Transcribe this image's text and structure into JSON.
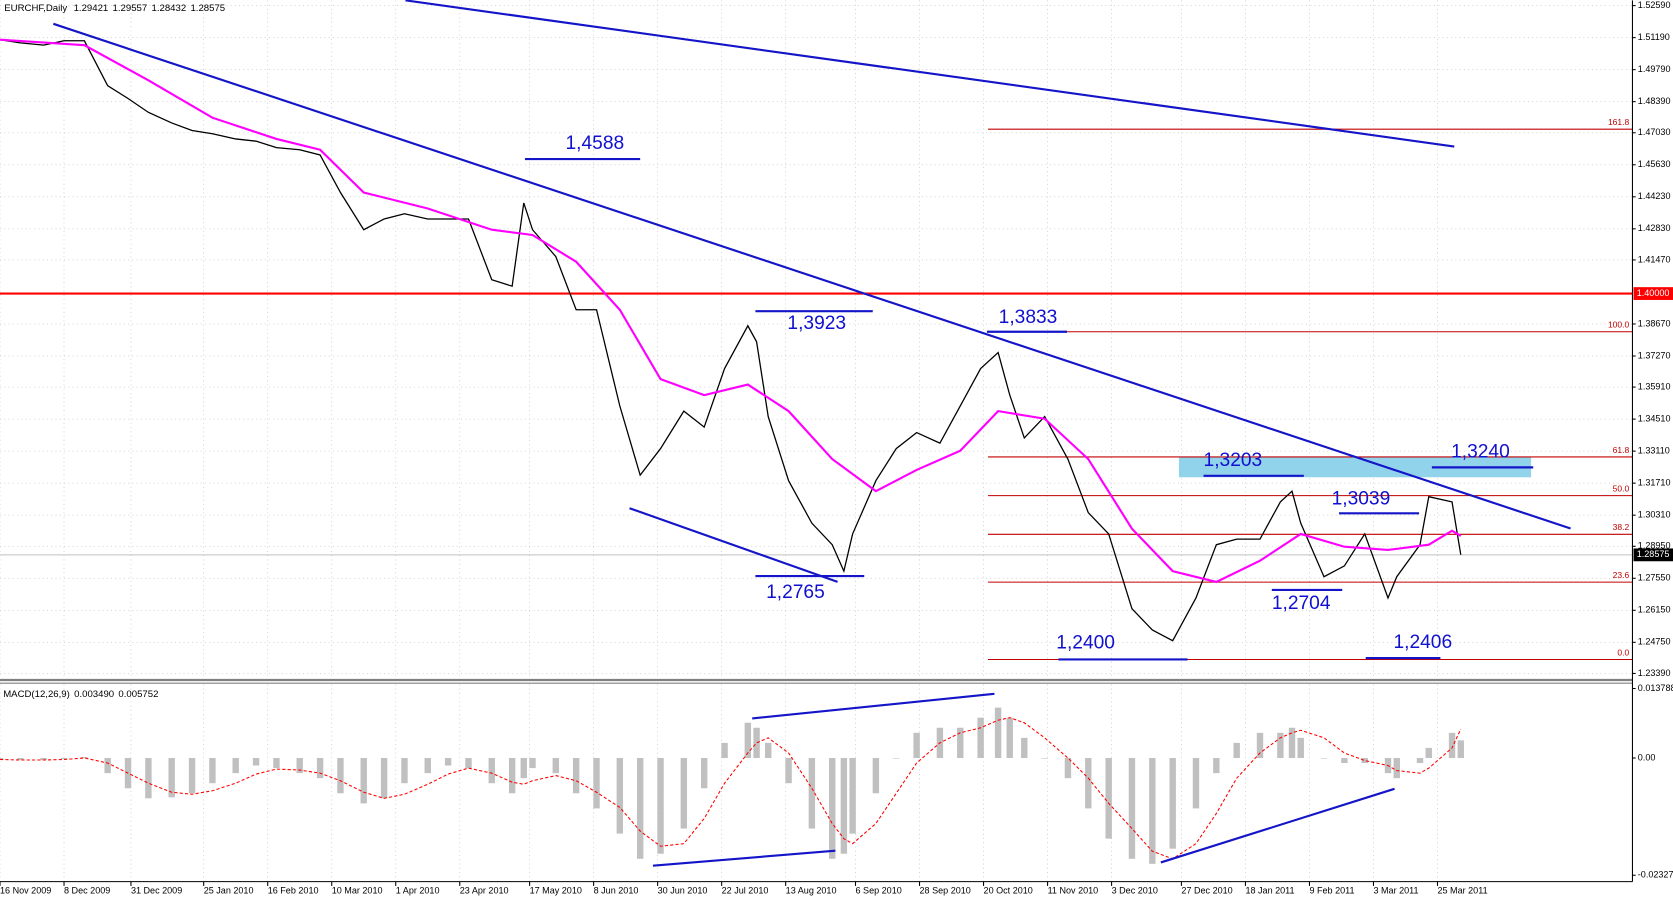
{
  "chart_data": [
    {
      "type": "line",
      "title": "EURCHF,Daily",
      "ohlc": [
        1.29421,
        1.29557,
        1.28432,
        1.28575
      ],
      "x": [
        "2009-11-16",
        "2009-11-23",
        "2009-12-01",
        "2009-12-08",
        "2009-12-15",
        "2009-12-23",
        "2009-12-30",
        "2010-01-06",
        "2010-01-14",
        "2010-01-21",
        "2010-01-28",
        "2010-02-05",
        "2010-02-12",
        "2010-02-19",
        "2010-02-27",
        "2010-03-06",
        "2010-03-13",
        "2010-03-21",
        "2010-03-28",
        "2010-04-04",
        "2010-04-12",
        "2010-04-19",
        "2010-04-26",
        "2010-05-04",
        "2010-05-11",
        "2010-05-15",
        "2010-05-18",
        "2010-05-26",
        "2010-06-02",
        "2010-06-09",
        "2010-06-17",
        "2010-06-24",
        "2010-07-01",
        "2010-07-09",
        "2010-07-16",
        "2010-07-23",
        "2010-07-31",
        "2010-08-03",
        "2010-08-07",
        "2010-08-14",
        "2010-08-22",
        "2010-08-29",
        "2010-09-02",
        "2010-09-05",
        "2010-09-13",
        "2010-09-20",
        "2010-09-27",
        "2010-10-05",
        "2010-10-12",
        "2010-10-19",
        "2010-10-25",
        "2010-10-29",
        "2010-11-03",
        "2010-11-10",
        "2010-11-18",
        "2010-11-25",
        "2010-12-02",
        "2010-12-10",
        "2010-12-17",
        "2010-12-24",
        "2011-01-01",
        "2011-01-08",
        "2011-01-15",
        "2011-01-23",
        "2011-01-30",
        "2011-02-03",
        "2011-02-06",
        "2011-02-14",
        "2011-02-21",
        "2011-02-28",
        "2011-03-08",
        "2011-03-11",
        "2011-03-19",
        "2011-03-22",
        "2011-03-30",
        "2011-04-02"
      ],
      "series": [
        {
          "color": "#000000",
          "values": [
            1.511,
            1.5096,
            1.5086,
            1.5105,
            1.5105,
            1.4909,
            1.4853,
            1.4792,
            1.4746,
            1.4713,
            1.4699,
            1.4676,
            1.4666,
            1.4638,
            1.4629,
            1.4606,
            1.4442,
            1.4279,
            1.4326,
            1.4349,
            1.4326,
            1.4326,
            1.4326,
            1.406,
            1.4032,
            1.4396,
            1.4279,
            1.4162,
            1.3929,
            1.3929,
            1.3509,
            1.3206,
            1.3322,
            1.3486,
            1.3416,
            1.3672,
            1.3859,
            1.3789,
            1.3462,
            1.3182,
            1.2996,
            1.2902,
            1.2786,
            1.2949,
            1.3182,
            1.3322,
            1.3392,
            1.3346,
            1.3509,
            1.3672,
            1.3742,
            1.3556,
            1.3369,
            1.3462,
            1.3276,
            1.3042,
            1.2949,
            1.2622,
            1.2529,
            1.2482,
            1.2669,
            1.2902,
            1.2926,
            1.2926,
            1.3089,
            1.3136,
            1.2996,
            1.2762,
            1.2809,
            1.2949,
            1.2669,
            1.2762,
            1.2902,
            1.3112,
            1.3089,
            1.2858
          ]
        },
        {
          "color": "#ff00ff",
          "x": [
            "2009-11-16",
            "2009-12-15",
            "2010-01-06",
            "2010-01-28",
            "2010-02-19",
            "2010-03-06",
            "2010-03-21",
            "2010-04-12",
            "2010-05-04",
            "2010-05-18",
            "2010-06-02",
            "2010-06-17",
            "2010-07-01",
            "2010-07-16",
            "2010-07-31",
            "2010-08-14",
            "2010-08-29",
            "2010-09-13",
            "2010-09-27",
            "2010-10-12",
            "2010-10-25",
            "2010-11-10",
            "2010-11-25",
            "2010-12-10",
            "2010-12-24",
            "2011-01-08",
            "2011-01-23",
            "2011-02-06",
            "2011-02-21",
            "2011-03-08",
            "2011-03-22",
            "2011-03-30",
            "2011-04-02"
          ],
          "values": [
            1.511,
            1.5086,
            1.4932,
            1.4769,
            1.4676,
            1.4629,
            1.4442,
            1.4372,
            1.4279,
            1.4256,
            1.4139,
            1.3929,
            1.3626,
            1.3556,
            1.3602,
            1.3486,
            1.3276,
            1.3136,
            1.3229,
            1.3313,
            1.3486,
            1.3453,
            1.3276,
            1.2972,
            1.2786,
            1.2739,
            1.2832,
            1.2949,
            1.2893,
            1.2879,
            1.2902,
            1.2963,
            1.294
          ]
        }
      ],
      "xlim": [
        "2009-11-16",
        "2011-05-31"
      ],
      "xticks": [
        {
          "value": "2009-11-16",
          "label": "16 Nov 2009"
        },
        {
          "value": "2009-12-08",
          "label": "8 Dec 2009"
        },
        {
          "value": "2009-12-31",
          "label": "31 Dec 2009"
        },
        {
          "value": "2010-01-25",
          "label": "25 Jan 2010"
        },
        {
          "value": "2010-02-16",
          "label": "16 Feb 2010"
        },
        {
          "value": "2010-03-10",
          "label": "10 Mar 2010"
        },
        {
          "value": "2010-04-01",
          "label": "1 Apr 2010"
        },
        {
          "value": "2010-04-23",
          "label": "23 Apr 2010"
        },
        {
          "value": "2010-05-17",
          "label": "17 May 2010"
        },
        {
          "value": "2010-06-08",
          "label": "8 Jun 2010"
        },
        {
          "value": "2010-06-30",
          "label": "30 Jun 2010"
        },
        {
          "value": "2010-07-22",
          "label": "22 Jul 2010"
        },
        {
          "value": "2010-08-13",
          "label": "13 Aug 2010"
        },
        {
          "value": "2010-09-06",
          "label": "6 Sep 2010"
        },
        {
          "value": "2010-09-28",
          "label": "28 Sep 2010"
        },
        {
          "value": "2010-10-20",
          "label": "20 Oct 2010"
        },
        {
          "value": "2010-11-11",
          "label": "11 Nov 2010"
        },
        {
          "value": "2010-12-03",
          "label": "3 Dec 2010"
        },
        {
          "value": "2010-12-27",
          "label": "27 Dec 2010"
        },
        {
          "value": "2011-01-18",
          "label": "18 Jan 2011"
        },
        {
          "value": "2011-02-09",
          "label": "9 Feb 2011"
        },
        {
          "value": "2011-03-03",
          "label": "3 Mar 2011"
        },
        {
          "value": "2011-03-25",
          "label": "25 Mar 2011"
        }
      ],
      "ylim": [
        1.2315,
        1.5282
      ],
      "yticks": [
        {
          "value": 1.5259,
          "label": "1.52590"
        },
        {
          "value": 1.5119,
          "label": "1.51190"
        },
        {
          "value": 1.4979,
          "label": "1.49790"
        },
        {
          "value": 1.4839,
          "label": "1.48390"
        },
        {
          "value": 1.4703,
          "label": "1.47030"
        },
        {
          "value": 1.4563,
          "label": "1.45630"
        },
        {
          "value": 1.4423,
          "label": "1.44230"
        },
        {
          "value": 1.4283,
          "label": "1.42830"
        },
        {
          "value": 1.4147,
          "label": "1.41470"
        },
        {
          "value": 1.3867,
          "label": "1.38670"
        },
        {
          "value": 1.3727,
          "label": "1.37270"
        },
        {
          "value": 1.3591,
          "label": "1.35910"
        },
        {
          "value": 1.3451,
          "label": "1.34510"
        },
        {
          "value": 1.3311,
          "label": "1.33110"
        },
        {
          "value": 1.3171,
          "label": "1.31710"
        },
        {
          "value": 1.3031,
          "label": "1.30310"
        },
        {
          "value": 1.2895,
          "label": "1.28950"
        },
        {
          "value": 1.2755,
          "label": "1.27550"
        },
        {
          "value": 1.2615,
          "label": "1.26150"
        },
        {
          "value": 1.2475,
          "label": "1.24750"
        },
        {
          "value": 1.2339,
          "label": "1.23390"
        }
      ],
      "grid": true,
      "levels": [
        {
          "value": 1.4,
          "label": "1.40000",
          "color": "#ff0000"
        }
      ],
      "annotations": [
        {
          "value": 1.4588,
          "label": "1,4588"
        },
        {
          "value": 1.3923,
          "label": "1,3923"
        },
        {
          "value": 1.3833,
          "label": "1,3833"
        },
        {
          "value": 1.2765,
          "label": "1,2765"
        },
        {
          "value": 1.24,
          "label": "1,2400"
        },
        {
          "value": 1.3203,
          "label": "1,3203"
        },
        {
          "value": 1.324,
          "label": "1,3240"
        },
        {
          "value": 1.3039,
          "label": "1,3039"
        },
        {
          "value": 1.2704,
          "label": "1,2704"
        },
        {
          "value": 1.2406,
          "label": "1,2406"
        }
      ],
      "fibonacci": {
        "color": "#c00000",
        "levels": [
          {
            "value": 161.8,
            "label": "161.8"
          },
          {
            "value": 100,
            "label": "100.0"
          },
          {
            "value": 61.8,
            "label": "61.8"
          },
          {
            "value": 50,
            "label": "50.0"
          },
          {
            "value": 38.2,
            "label": "38.2"
          },
          {
            "value": 23.6,
            "label": "23.6"
          },
          {
            "value": 0,
            "label": "0.0"
          }
        ]
      }
    },
    {
      "type": "bar",
      "title": "MACD(12,26,9)",
      "readings": [
        {
          "value": 0.00349,
          "label": "0.003490"
        },
        0.005752
      ],
      "series": [
        {
          "color": "#c0c0c0",
          "values": [
            -0.0004,
            -0.0004,
            -0.0004,
            -0.0002,
            0.0002,
            -0.003,
            -0.006,
            -0.008,
            -0.0078,
            -0.007,
            -0.005,
            -0.003,
            -0.0015,
            -0.002,
            -0.003,
            -0.004,
            -0.007,
            -0.009,
            -0.008,
            -0.005,
            -0.003,
            -0.0015,
            -0.002,
            -0.005,
            -0.007,
            -0.004,
            -0.002,
            -0.003,
            -0.007,
            -0.01,
            -0.015,
            -0.02,
            -0.019,
            -0.014,
            -0.006,
            0.003,
            0.007,
            0.006,
            0.003,
            -0.005,
            -0.014,
            -0.02,
            -0.019,
            -0.015,
            -0.007,
            0.0,
            0.005,
            0.006,
            0.006,
            0.008,
            0.01,
            0.008,
            0.004,
            0.0,
            -0.004,
            -0.01,
            -0.016,
            -0.02,
            -0.021,
            -0.018,
            -0.01,
            -0.003,
            0.003,
            0.005,
            0.005,
            0.006,
            0.004,
            0.0,
            -0.001,
            -0.001,
            -0.003,
            -0.004,
            -0.001,
            0.002,
            0.005,
            0.0035
          ]
        },
        {
          "color": "#ff0000",
          "dash": true,
          "values": [
            -0.0003,
            -0.0004,
            -0.0004,
            -0.0003,
            0.0,
            -0.001,
            -0.003,
            -0.005,
            -0.0068,
            -0.0072,
            -0.0065,
            -0.005,
            -0.0032,
            -0.0022,
            -0.0024,
            -0.003,
            -0.0045,
            -0.0068,
            -0.008,
            -0.0072,
            -0.0052,
            -0.0032,
            -0.002,
            -0.003,
            -0.0048,
            -0.0052,
            -0.0045,
            -0.0035,
            -0.0045,
            -0.0068,
            -0.0098,
            -0.0145,
            -0.0175,
            -0.017,
            -0.012,
            -0.005,
            0.001,
            0.003,
            0.004,
            0.001,
            -0.006,
            -0.013,
            -0.016,
            -0.017,
            -0.013,
            -0.007,
            -0.001,
            0.003,
            0.005,
            0.006,
            0.0075,
            0.008,
            0.007,
            0.004,
            0.0,
            -0.004,
            -0.009,
            -0.014,
            -0.0185,
            -0.02,
            -0.017,
            -0.011,
            -0.004,
            0.001,
            0.004,
            0.005,
            0.0055,
            0.004,
            0.001,
            -0.0005,
            -0.0015,
            -0.0025,
            -0.003,
            -0.002,
            0.002,
            0.005752
          ]
        }
      ],
      "ylim": [
        -0.02327,
        0.013788
      ],
      "yticks": [
        0.013788,
        {
          "value": 0,
          "label": "0.00"
        },
        -0.02327
      ]
    }
  ]
}
